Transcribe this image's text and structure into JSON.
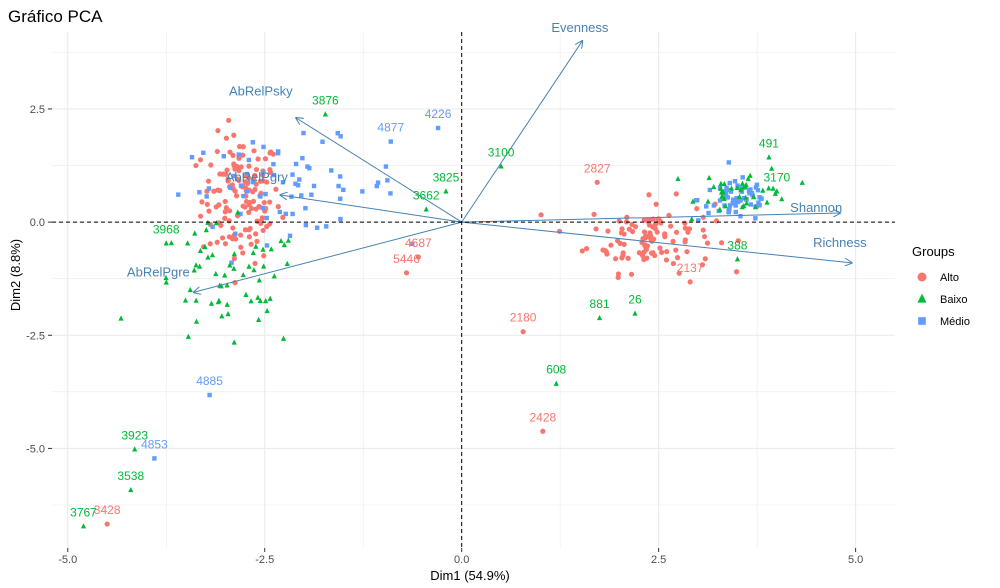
{
  "chart_data": {
    "type": "scatter",
    "title": "Gráfico PCA",
    "xlabel": "Dim1 (54.9%)",
    "ylabel": "Dim2 (8.8%)",
    "xlim": [
      -5.2,
      5.5
    ],
    "ylim": [
      -7.2,
      4.2
    ],
    "xticks": [
      -5.0,
      -2.5,
      0.0,
      2.5,
      5.0
    ],
    "xtick_labels": [
      "-5.0",
      "-2.5",
      "0.0",
      "2.5",
      "5.0"
    ],
    "yticks": [
      -5.0,
      -2.5,
      0.0,
      2.5
    ],
    "ytick_labels": [
      "-5.0",
      "-2.5",
      "0.0",
      "2.5"
    ],
    "grid": true,
    "legend": {
      "title": "Groups",
      "position": "right",
      "entries": [
        {
          "name": "Alto",
          "color": "#F8766D",
          "shape": "circle"
        },
        {
          "name": "Baixo",
          "color": "#00BA38",
          "shape": "triangle"
        },
        {
          "name": "Médio",
          "color": "#619CFF",
          "shape": "square"
        }
      ]
    },
    "clusters": [
      {
        "group": "Alto",
        "center": [
          -2.8,
          0.5
        ],
        "spread": [
          0.5,
          1.4
        ],
        "count": 140
      },
      {
        "group": "Alto",
        "center": [
          2.4,
          -0.3
        ],
        "spread": [
          0.8,
          0.8
        ],
        "count": 110
      },
      {
        "group": "Médio",
        "center": [
          -2.2,
          0.8
        ],
        "spread": [
          1.4,
          1.0
        ],
        "count": 70
      },
      {
        "group": "Médio",
        "center": [
          3.5,
          0.5
        ],
        "spread": [
          0.5,
          0.5
        ],
        "count": 60
      },
      {
        "group": "Baixo",
        "center": [
          -3.0,
          -1.5
        ],
        "spread": [
          1.0,
          1.4
        ],
        "count": 60
      },
      {
        "group": "Baixo",
        "center": [
          3.6,
          0.7
        ],
        "spread": [
          0.6,
          0.5
        ],
        "count": 40
      }
    ],
    "labeled_points": [
      {
        "label": "3876",
        "x": -1.73,
        "y": 2.6,
        "group": "Baixo"
      },
      {
        "label": "3100",
        "x": 0.5,
        "y": 1.45,
        "group": "Baixo"
      },
      {
        "label": "2827",
        "x": 1.72,
        "y": 1.1,
        "group": "Alto"
      },
      {
        "label": "3662",
        "x": -0.45,
        "y": 0.5,
        "group": "Baixo"
      },
      {
        "label": "3825",
        "x": -0.2,
        "y": 0.9,
        "group": "Baixo"
      },
      {
        "label": "3968",
        "x": -3.75,
        "y": -0.25,
        "group": "Baixo"
      },
      {
        "label": "5446",
        "x": -0.7,
        "y": -0.9,
        "group": "Alto"
      },
      {
        "label": "2137",
        "x": 2.9,
        "y": -1.1,
        "group": "Alto"
      },
      {
        "label": "26",
        "x": 2.2,
        "y": -1.8,
        "group": "Baixo"
      },
      {
        "label": "881",
        "x": 1.75,
        "y": -1.9,
        "group": "Baixo"
      },
      {
        "label": "2180",
        "x": 0.78,
        "y": -2.2,
        "group": "Alto"
      },
      {
        "label": "608",
        "x": 1.2,
        "y": -3.35,
        "group": "Baixo"
      },
      {
        "label": "2428",
        "x": 1.03,
        "y": -4.4,
        "group": "Alto"
      },
      {
        "label": "4885",
        "x": -3.2,
        "y": -3.6,
        "group": "Médio"
      },
      {
        "label": "3923",
        "x": -4.15,
        "y": -4.8,
        "group": "Baixo"
      },
      {
        "label": "4853",
        "x": -3.9,
        "y": -5.0,
        "group": "Médio"
      },
      {
        "label": "3767",
        "x": -4.8,
        "y": -6.5,
        "group": "Baixo"
      },
      {
        "label": "3428",
        "x": -4.5,
        "y": -6.45,
        "group": "Alto"
      },
      {
        "label": "3538",
        "x": -4.2,
        "y": -5.7,
        "group": "Baixo"
      },
      {
        "label": "4226",
        "x": -0.3,
        "y": 2.3,
        "group": "Médio"
      },
      {
        "label": "491",
        "x": 3.9,
        "y": 1.65,
        "group": "Baixo"
      },
      {
        "label": "3170",
        "x": 4.0,
        "y": 0.9,
        "group": "Baixo"
      },
      {
        "label": "388",
        "x": 3.5,
        "y": -0.6,
        "group": "Baixo"
      },
      {
        "label": "4687",
        "x": -0.55,
        "y": -0.55,
        "group": "Alto"
      },
      {
        "label": "4877",
        "x": -0.9,
        "y": 2.0,
        "group": "Médio"
      }
    ],
    "variables": [
      {
        "name": "Evenness",
        "x": 1.53,
        "y": 4.0,
        "label_x": 1.5,
        "label_y": 4.2
      },
      {
        "name": "Richness",
        "x": 4.95,
        "y": -0.9,
        "label_x": 4.8,
        "label_y": -0.55
      },
      {
        "name": "Shannon",
        "x": 4.8,
        "y": 0.2,
        "label_x": 4.5,
        "label_y": 0.22
      },
      {
        "name": "AbRelPsky",
        "x": -2.1,
        "y": 2.3,
        "label_x": -2.55,
        "label_y": 2.8
      },
      {
        "name": "AbRelPgry",
        "x": -2.3,
        "y": 0.6,
        "label_x": -2.6,
        "label_y": 0.9
      },
      {
        "name": "AbRelPgre",
        "x": -3.4,
        "y": -1.55,
        "label_x": -3.85,
        "label_y": -1.2
      }
    ]
  }
}
